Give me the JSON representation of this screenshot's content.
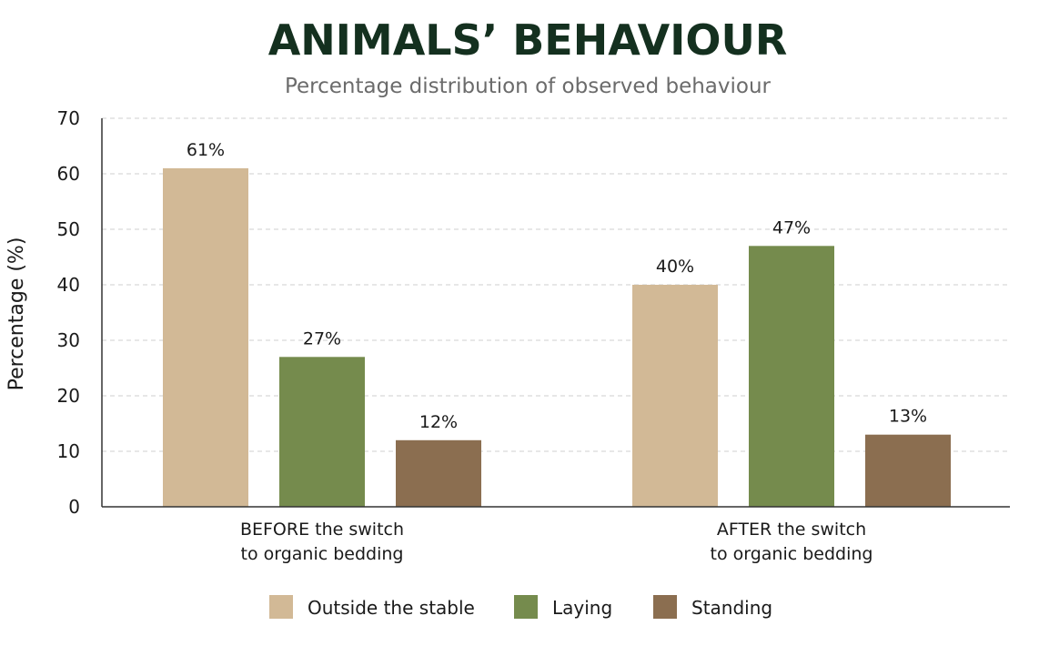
{
  "chart_data": {
    "type": "bar",
    "title": "ANIMALS’ BEHAVIOUR",
    "subtitle": "Percentage distribution of observed behaviour",
    "ylabel": "Percentage (%)",
    "xlabel": "",
    "ylim": [
      0,
      70
    ],
    "yticks": [
      0,
      10,
      20,
      30,
      40,
      50,
      60,
      70
    ],
    "grid": true,
    "legend_position": "bottom",
    "categories": [
      [
        "BEFORE the switch",
        "to organic bedding"
      ],
      [
        "AFTER the switch",
        "to organic bedding"
      ]
    ],
    "series": [
      {
        "name": "Outside the stable",
        "color": "#d2b996",
        "values": [
          61,
          40
        ],
        "labels": [
          "61%",
          "40%"
        ]
      },
      {
        "name": "Laying",
        "color": "#758b4d",
        "values": [
          27,
          47
        ],
        "labels": [
          "27%",
          "47%"
        ]
      },
      {
        "name": "Standing",
        "color": "#8b6e50",
        "values": [
          12,
          13
        ],
        "labels": [
          "12%",
          "13%"
        ]
      }
    ]
  }
}
